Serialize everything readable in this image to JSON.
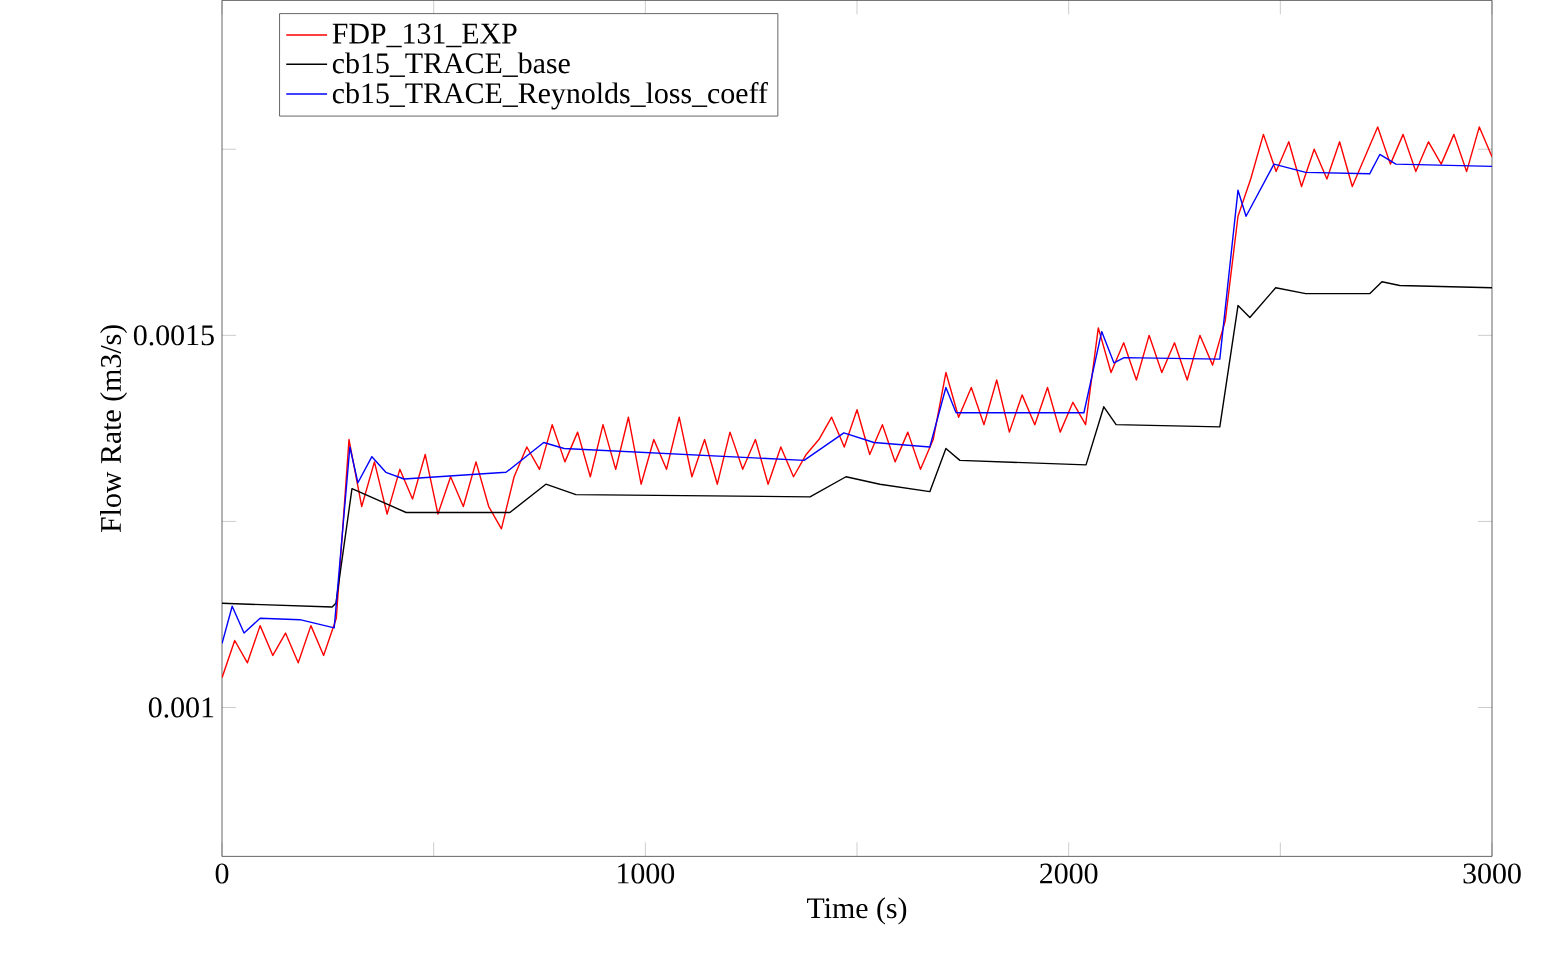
{
  "chart_data": {
    "type": "line",
    "xlabel": "Time (s)",
    "ylabel": "Flow Rate (m3/s)",
    "xlim": [
      0,
      3000
    ],
    "ylim": [
      0.0008,
      0.00195
    ],
    "xticks": [
      0,
      {
        "value": 500,
        "label": null
      },
      1000,
      {
        "value": 1500,
        "label": null
      },
      2000,
      {
        "value": 2500,
        "label": null
      },
      3000
    ],
    "yticks": [
      0.001,
      {
        "value": 0.00125,
        "label": null
      },
      0.0015,
      {
        "value": 0.00175,
        "label": null
      }
    ],
    "legend": "top left",
    "grid": false,
    "marker": "none",
    "line_style": "solid",
    "series": [
      {
        "name": "FDP_131_EXP",
        "color": "#ff0000",
        "x": [
          0,
          30,
          60,
          90,
          120,
          150,
          180,
          210,
          240,
          270,
          300,
          330,
          360,
          390,
          420,
          450,
          480,
          510,
          540,
          570,
          600,
          630,
          660,
          690,
          720,
          750,
          780,
          810,
          840,
          870,
          900,
          930,
          960,
          990,
          1020,
          1050,
          1080,
          1110,
          1140,
          1170,
          1200,
          1230,
          1260,
          1290,
          1320,
          1350,
          1380,
          1410,
          1440,
          1470,
          1500,
          1530,
          1560,
          1590,
          1620,
          1650,
          1680,
          1710,
          1740,
          1770,
          1800,
          1830,
          1860,
          1890,
          1920,
          1950,
          1980,
          2010,
          2040,
          2070,
          2100,
          2130,
          2160,
          2190,
          2220,
          2250,
          2280,
          2310,
          2340,
          2370,
          2400,
          2430,
          2460,
          2490,
          2520,
          2550,
          2580,
          2610,
          2640,
          2670,
          2700,
          2730,
          2760,
          2790,
          2820,
          2850,
          2880,
          2910,
          2940,
          2970,
          3000
        ],
        "values": [
          0.00104,
          0.00109,
          0.00106,
          0.00111,
          0.00107,
          0.0011,
          0.00106,
          0.00111,
          0.00107,
          0.00112,
          0.00136,
          0.00127,
          0.00133,
          0.00126,
          0.00132,
          0.00128,
          0.00134,
          0.00126,
          0.00131,
          0.00127,
          0.00133,
          0.00127,
          0.00124,
          0.00131,
          0.00135,
          0.00132,
          0.00138,
          0.00133,
          0.00137,
          0.00131,
          0.00138,
          0.00132,
          0.00139,
          0.0013,
          0.00136,
          0.00132,
          0.00139,
          0.00131,
          0.00136,
          0.0013,
          0.00137,
          0.00132,
          0.00136,
          0.0013,
          0.00135,
          0.00131,
          0.00134,
          0.00136,
          0.00139,
          0.00135,
          0.0014,
          0.00134,
          0.00138,
          0.00133,
          0.00137,
          0.00132,
          0.00136,
          0.00145,
          0.00139,
          0.00143,
          0.00138,
          0.00144,
          0.00137,
          0.00142,
          0.00138,
          0.00143,
          0.00137,
          0.00141,
          0.00138,
          0.00151,
          0.00145,
          0.00149,
          0.00144,
          0.0015,
          0.00145,
          0.00149,
          0.00144,
          0.0015,
          0.00146,
          0.00152,
          0.00166,
          0.00171,
          0.00177,
          0.00172,
          0.00176,
          0.0017,
          0.00175,
          0.00171,
          0.00176,
          0.0017,
          0.00174,
          0.00178,
          0.00173,
          0.00177,
          0.00172,
          0.00176,
          0.00173,
          0.00177,
          0.00172,
          0.00178,
          0.00174
        ]
      },
      {
        "name": "cb15_TRACE_base",
        "color": "#000000",
        "x": [
          0,
          260,
          269,
          307,
          435,
          680,
          765,
          836,
          1389,
          1474,
          1554,
          1672,
          1710,
          1743,
          2041,
          2083,
          2112,
          2357,
          2400,
          2428,
          2489,
          2560,
          2711,
          2740,
          2782,
          3000
        ],
        "values": [
          0.00114,
          0.001135,
          0.00114,
          0.001294,
          0.001262,
          0.001262,
          0.0013,
          0.001286,
          0.001283,
          0.00131,
          0.0013,
          0.00129,
          0.001348,
          0.001332,
          0.001326,
          0.001404,
          0.00138,
          0.001377,
          0.00154,
          0.001524,
          0.001564,
          0.001556,
          0.001556,
          0.001572,
          0.001567,
          0.001564
        ]
      },
      {
        "name": "cb15_TRACE_Reynolds_loss_coeff",
        "color": "#0000ff",
        "x": [
          0,
          24,
          52,
          90,
          184,
          265,
          302,
          321,
          354,
          387,
          430,
          671,
          760,
          808,
          1375,
          1469,
          1540,
          1672,
          1710,
          1734,
          2036,
          2078,
          2107,
          2131,
          2357,
          2400,
          2419,
          2485,
          2560,
          2711,
          2735,
          2773,
          3000
        ],
        "values": [
          0.001086,
          0.001136,
          0.0011,
          0.00112,
          0.001118,
          0.001107,
          0.00135,
          0.001302,
          0.001337,
          0.001316,
          0.001307,
          0.001316,
          0.001356,
          0.001348,
          0.001332,
          0.001369,
          0.001356,
          0.00135,
          0.00143,
          0.001396,
          0.001396,
          0.001505,
          0.001463,
          0.00147,
          0.001468,
          0.001695,
          0.00166,
          0.00173,
          0.001719,
          0.001717,
          0.001743,
          0.00173,
          0.001727
        ]
      }
    ]
  }
}
